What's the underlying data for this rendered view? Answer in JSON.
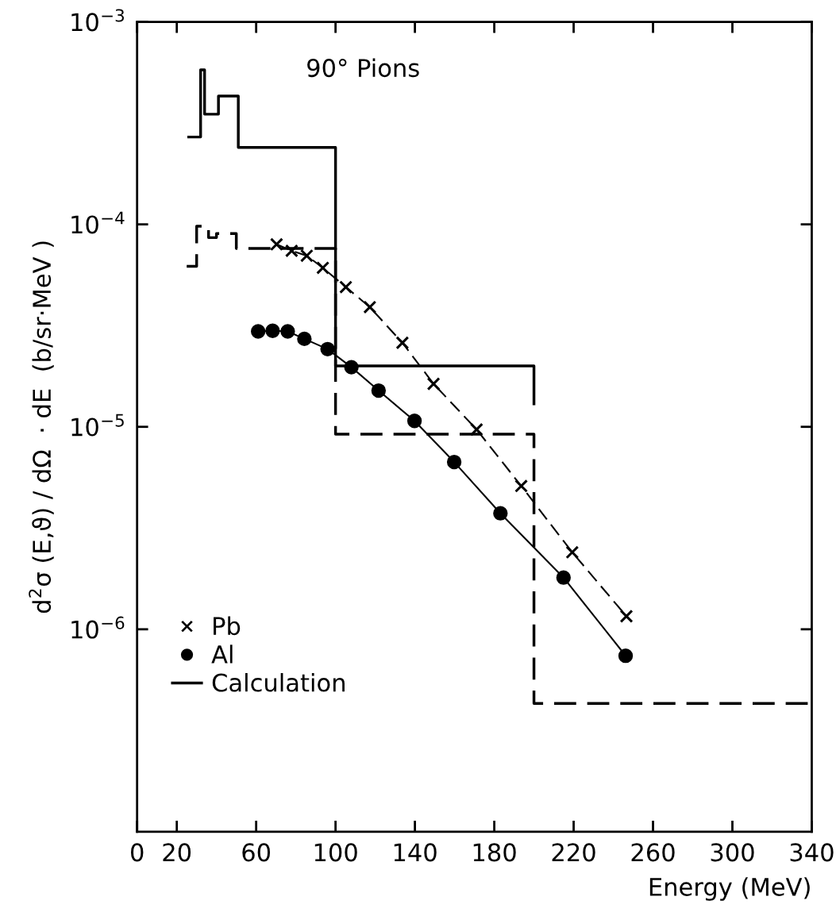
{
  "chart_data": {
    "type": "line",
    "xlabel": "Energy (MeV)",
    "ylabel": "d$^{2}$σ (E,ϑ) / dΩ  · dE  (b/sr·MeV )",
    "annotations": [
      "90° Pions"
    ],
    "log": "y",
    "xlim": [
      0,
      340
    ],
    "xticks": [
      0,
      20,
      60,
      100,
      140,
      180,
      220,
      260,
      300,
      340
    ],
    "ylim": [
      1e-07,
      0.001
    ],
    "yticks": [
      {
        "value": 0.001,
        "label": "10$^{−3}$"
      },
      {
        "value": 0.0001,
        "label": "10$^{−4}$"
      },
      {
        "value": 1e-05,
        "label": "10$^{−5}$"
      },
      {
        "value": 1e-06,
        "label": "10$^{−6}$"
      }
    ],
    "grid": false,
    "legend": "bottom left",
    "series": [
      {
        "name": "Pb",
        "marker": "cross",
        "line_style": "dashed",
        "color": "#000000",
        "x": [
          70.3,
          77.9,
          85.5,
          93.6,
          105.2,
          117.3,
          133.7,
          149.4,
          171.1,
          193.6,
          219.3,
          246.6
        ],
        "values": [
          7.97e-05,
          7.4e-05,
          7e-05,
          6.1e-05,
          4.9e-05,
          3.9e-05,
          2.6e-05,
          1.63e-05,
          9.7e-06,
          5.1e-06,
          2.4e-06,
          1.16e-06
        ]
      },
      {
        "name": "Al",
        "marker": "circle",
        "line_style": "solid",
        "color": "#000000",
        "x": [
          61,
          68.3,
          75.9,
          84.3,
          96,
          108,
          121.7,
          139.8,
          159.8,
          183.1,
          214.9,
          246.2
        ],
        "values": [
          2.96e-05,
          2.98e-05,
          2.96e-05,
          2.72e-05,
          2.42e-05,
          1.97e-05,
          1.51e-05,
          1.07e-05,
          6.7e-06,
          3.74e-06,
          1.8e-06,
          7.4e-07
        ]
      },
      {
        "name": "Calculation",
        "type": "step",
        "marker": "none",
        "line_style": "solid",
        "color": "#000000",
        "x": [
          26,
          32,
          34,
          41,
          51,
          100,
          200
        ],
        "values": [
          0.00027,
          0.00058,
          0.00035,
          0.00043,
          0.00024,
          2e-05,
          1.3e-05
        ]
      },
      {
        "type": "step",
        "marker": "none",
        "line_style": "dashed",
        "color": "#000000",
        "x": [
          25,
          30,
          36,
          40,
          50,
          100,
          200,
          340
        ],
        "values": [
          6.2e-05,
          9.8e-05,
          8.6e-05,
          9e-05,
          7.6e-05,
          9.2e-06,
          4.3e-07,
          4.3e-07
        ]
      }
    ]
  }
}
